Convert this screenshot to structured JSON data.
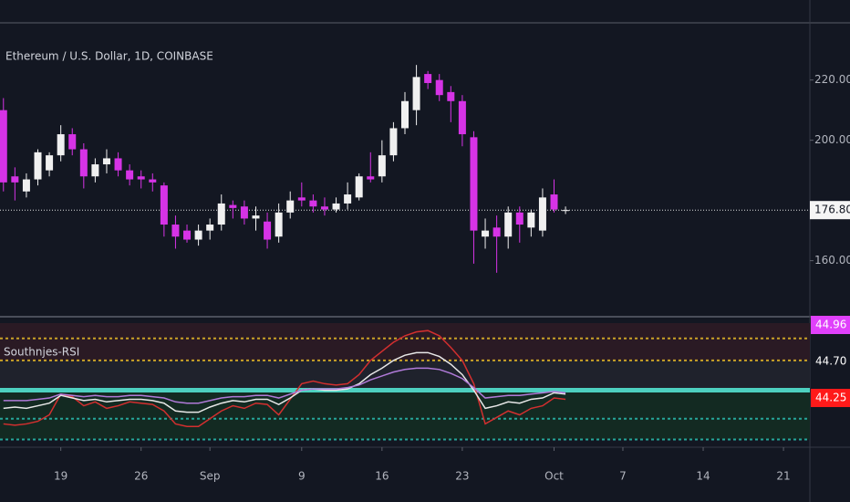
{
  "chart_data": [
    {
      "type": "candlestick",
      "title": "Ethereum / U.S. Dollar, 1D, COINBASE",
      "x": [
        0,
        1,
        2,
        3,
        4,
        5,
        6,
        7,
        8,
        9,
        10,
        11,
        12,
        13,
        14,
        15,
        16,
        17,
        18,
        19,
        20,
        21,
        22,
        23,
        24,
        25,
        26,
        27,
        28,
        29,
        30,
        31,
        32,
        33,
        34,
        35,
        36,
        37,
        38,
        39,
        40,
        41,
        42,
        43,
        44,
        45,
        46,
        47,
        48,
        49
      ],
      "open": [
        210,
        188,
        183,
        187,
        190,
        195,
        202,
        197,
        188,
        192,
        194,
        190,
        188,
        187,
        185,
        172,
        170,
        167,
        170,
        172,
        178.5,
        178,
        174,
        173,
        168,
        176,
        181,
        180,
        178,
        177,
        179,
        181,
        188,
        188,
        195,
        204,
        210,
        222,
        220,
        216,
        213,
        201,
        168,
        171,
        168,
        176,
        171,
        170,
        182,
        176.5
      ],
      "high": [
        214,
        191,
        189,
        197,
        196,
        205,
        204,
        199,
        194,
        197,
        196,
        192,
        190,
        189,
        186,
        175,
        172,
        172,
        174,
        182,
        180,
        180,
        178,
        176,
        179,
        183,
        186,
        182,
        181,
        181,
        186,
        189,
        196,
        200,
        206,
        216,
        225,
        223,
        222,
        218,
        215,
        203,
        174,
        175,
        178,
        178,
        177,
        184,
        187,
        178
      ],
      "low": [
        183,
        180,
        181,
        185,
        188,
        193,
        195,
        184,
        186,
        189,
        188,
        185,
        184,
        183,
        168,
        164,
        166,
        165,
        167,
        170,
        174,
        172,
        170,
        164,
        166,
        174,
        178,
        176,
        175,
        176,
        177,
        180,
        186,
        186,
        193,
        202,
        205,
        217,
        213,
        206,
        198,
        159,
        164,
        156,
        164,
        166,
        168,
        168,
        176,
        175.5
      ],
      "close": [
        186,
        186,
        187,
        196,
        195,
        202,
        197,
        188,
        192,
        194,
        190,
        187,
        187,
        186,
        172,
        168,
        167,
        170,
        172,
        179,
        177.5,
        174,
        175,
        167,
        176,
        180,
        180,
        178,
        177,
        179,
        182,
        188,
        187,
        195,
        204,
        213,
        221,
        219,
        215,
        213,
        202,
        170,
        170,
        168,
        176,
        172,
        176,
        181,
        177,
        176.8
      ],
      "up_color": "#f0f0f0",
      "down_color": "#d633e6",
      "xlim": [
        -0.3,
        70.3
      ],
      "xticks": [
        {
          "value": 5,
          "label": "19"
        },
        {
          "value": 12,
          "label": "26"
        },
        {
          "value": 18,
          "label": "Sep"
        },
        {
          "value": 26,
          "label": "9"
        },
        {
          "value": 33,
          "label": "16"
        },
        {
          "value": 40,
          "label": "23"
        },
        {
          "value": 48,
          "label": "Oct"
        },
        {
          "value": 54,
          "label": "7"
        },
        {
          "value": 61,
          "label": "14"
        },
        {
          "value": 68,
          "label": "21"
        }
      ],
      "ylim": [
        142,
        239
      ],
      "yticks": [
        {
          "value": 160,
          "label": "160.00"
        },
        {
          "value": 200,
          "label": "200.00"
        },
        {
          "value": 220,
          "label": "220.00"
        }
      ],
      "last_price": {
        "value": 176.8,
        "label": "176.80"
      }
    },
    {
      "type": "line",
      "title": "Southnjes-RSI",
      "ylim": [
        0,
        100
      ],
      "series": [
        {
          "name": "red",
          "color": "#d32f2f",
          "values": [
            18,
            17,
            18,
            20,
            25,
            41,
            39,
            32,
            35,
            30,
            32,
            35,
            34,
            33,
            28,
            18,
            16,
            16,
            22,
            28,
            32,
            30,
            34,
            33,
            25,
            37,
            49,
            51,
            49,
            48,
            49,
            56,
            67,
            74,
            81,
            86,
            89,
            90,
            86,
            77,
            67,
            49,
            18,
            23,
            28,
            25,
            30,
            32,
            38,
            37
          ]
        },
        {
          "name": "white",
          "color": "#e8e8e8",
          "values": [
            30,
            31,
            30,
            32,
            34,
            40,
            38,
            36,
            37,
            35,
            36,
            37,
            37,
            36,
            34,
            28,
            27,
            27,
            31,
            34,
            36,
            35,
            37,
            37,
            33,
            38,
            44,
            45,
            44,
            44,
            45,
            49,
            56,
            61,
            67,
            71,
            73,
            73,
            70,
            64,
            56,
            44,
            30,
            32,
            35,
            34,
            37,
            38,
            42,
            41
          ]
        },
        {
          "name": "purple",
          "color": "#b07ad8",
          "values": [
            36,
            36,
            36,
            37,
            38,
            41,
            40,
            39,
            40,
            39,
            39,
            40,
            40,
            39,
            38,
            35,
            34,
            34,
            36,
            38,
            39,
            39,
            40,
            40,
            38,
            41,
            44,
            45,
            45,
            45,
            46,
            48,
            52,
            55,
            58,
            60,
            61,
            61,
            60,
            57,
            53,
            46,
            38,
            39,
            40,
            40,
            41,
            42,
            43,
            42
          ]
        }
      ],
      "levels": [
        {
          "value": 84,
          "color": "#c9a227",
          "style": "dotted"
        },
        {
          "value": 67,
          "color": "#c9a227",
          "style": "dotted"
        },
        {
          "value": 44,
          "color": "#4dd0c0",
          "style": "solid"
        },
        {
          "value": 22,
          "color": "#26a69a",
          "style": "dotted"
        },
        {
          "value": 6,
          "color": "#26a69a",
          "style": "dotted"
        }
      ],
      "value_tags": [
        "44.96",
        "44.70",
        "44.25"
      ],
      "value_tag_colors": [
        "#e040fb",
        "#131722",
        "#ff1a1a"
      ]
    }
  ]
}
